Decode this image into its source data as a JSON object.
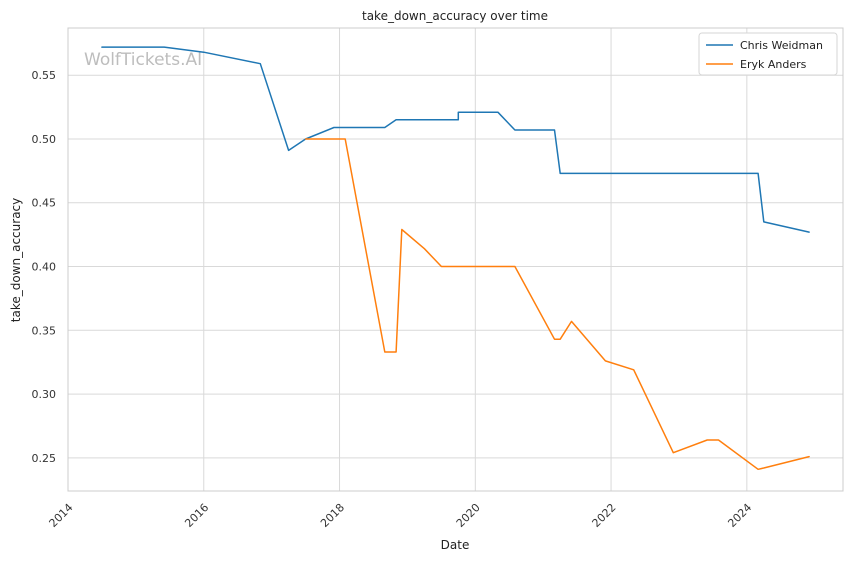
{
  "chart_data": {
    "type": "line",
    "title": "take_down_accuracy over time",
    "xlabel": "Date",
    "ylabel": "take_down_accuracy",
    "watermark": "WolfTickets.AI",
    "x_ticks": [
      "2014",
      "2016",
      "2018",
      "2020",
      "2022",
      "2024"
    ],
    "y_ticks": [
      "0.25",
      "0.30",
      "0.35",
      "0.40",
      "0.45",
      "0.50",
      "0.55"
    ],
    "xlim": [
      "2014-01",
      "2025-06"
    ],
    "ylim": [
      0.224,
      0.587
    ],
    "grid": true,
    "legend": "top-right",
    "series": [
      {
        "name": "Chris Weidman",
        "color": "#1f77b4",
        "points": [
          [
            "2014-07",
            0.572
          ],
          [
            "2015-06",
            0.572
          ],
          [
            "2016-01",
            0.568
          ],
          [
            "2016-11",
            0.559
          ],
          [
            "2017-04",
            0.491
          ],
          [
            "2017-07",
            0.5
          ],
          [
            "2017-12",
            0.509
          ],
          [
            "2018-09",
            0.509
          ],
          [
            "2018-11",
            0.515
          ],
          [
            "2019-10",
            0.515
          ],
          [
            "2019-10",
            0.521
          ],
          [
            "2020-05",
            0.521
          ],
          [
            "2020-08",
            0.507
          ],
          [
            "2021-03",
            0.507
          ],
          [
            "2021-04",
            0.473
          ],
          [
            "2024-03",
            0.473
          ],
          [
            "2024-04",
            0.435
          ],
          [
            "2024-12",
            0.427
          ]
        ]
      },
      {
        "name": "Eryk Anders",
        "color": "#ff7f0e",
        "points": [
          [
            "2017-07",
            0.5
          ],
          [
            "2018-01",
            0.5
          ],
          [
            "2018-02",
            0.5
          ],
          [
            "2018-09",
            0.333
          ],
          [
            "2018-11",
            0.333
          ],
          [
            "2018-12",
            0.429
          ],
          [
            "2019-04",
            0.414
          ],
          [
            "2019-07",
            0.4
          ],
          [
            "2020-08",
            0.4
          ],
          [
            "2021-03",
            0.343
          ],
          [
            "2021-04",
            0.343
          ],
          [
            "2021-06",
            0.357
          ],
          [
            "2021-12",
            0.326
          ],
          [
            "2022-05",
            0.319
          ],
          [
            "2022-12",
            0.254
          ],
          [
            "2023-06",
            0.264
          ],
          [
            "2023-08",
            0.264
          ],
          [
            "2024-03",
            0.241
          ],
          [
            "2024-04",
            0.242
          ],
          [
            "2024-12",
            0.251
          ]
        ]
      }
    ]
  }
}
